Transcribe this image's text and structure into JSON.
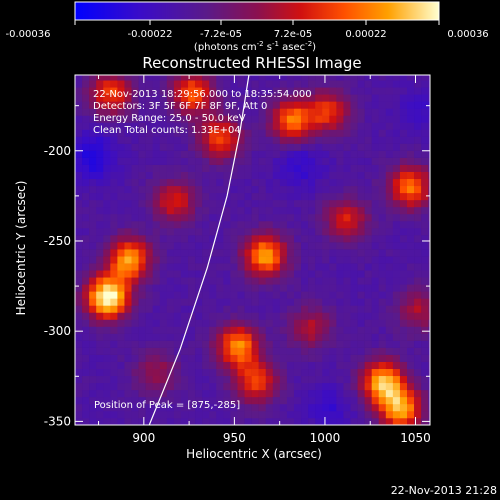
{
  "colorbar": {
    "tick_labels": [
      "-0.00036",
      "-0.00022",
      "-7.2e-05",
      "7.2e-05",
      "0.00022",
      "0.00036"
    ],
    "units_prefix": "(photons cm",
    "units_exp1": "-2",
    "units_mid": " s",
    "units_exp2": "-1",
    "units_mid2": " asec",
    "units_exp3": "-2",
    "units_suffix": ")"
  },
  "image": {
    "title": "Reconstructed RHESSI Image",
    "info_line1": "22-Nov-2013 18:29:56.000 to 18:35:54.000",
    "info_line2": "Detectors: 3F 5F 6F 7F 8F 9F, Att 0",
    "info_line3": "Energy Range: 25.0 - 50.0 keV",
    "info_line4": "Clean     Total counts: 1.33E+04",
    "peak_label": "Position of Peak = [875,-285]",
    "footer_timestamp": "22-Nov-2013 21:28"
  },
  "chart_data": {
    "type": "heatmap",
    "title": "Reconstructed RHESSI Image",
    "xlabel": "Heliocentric X (arcsec)",
    "ylabel": "Heliocentric Y (arcsec)",
    "xlim": [
      862,
      1058
    ],
    "ylim": [
      -352,
      -158
    ],
    "x_ticks": [
      900,
      950,
      1000,
      1050
    ],
    "y_ticks": [
      -200,
      -250,
      -300,
      -350
    ],
    "color_range": [
      -0.00036,
      0.00036
    ],
    "peak": [
      875,
      -285
    ],
    "limb_curve": [
      [
        903,
        -352
      ],
      [
        920,
        -310
      ],
      [
        935,
        -265
      ],
      [
        946,
        -225
      ],
      [
        953,
        -190
      ],
      [
        958,
        -158
      ]
    ],
    "sources": [
      {
        "x": 878,
        "y": -283,
        "intensity": 1.0
      },
      {
        "x": 890,
        "y": -262,
        "intensity": 0.75
      },
      {
        "x": 880,
        "y": -170,
        "intensity": 0.55
      },
      {
        "x": 925,
        "y": -170,
        "intensity": 0.6
      },
      {
        "x": 940,
        "y": -195,
        "intensity": 0.55
      },
      {
        "x": 980,
        "y": -185,
        "intensity": 0.65
      },
      {
        "x": 1000,
        "y": -180,
        "intensity": 0.5
      },
      {
        "x": 1045,
        "y": -222,
        "intensity": 0.65
      },
      {
        "x": 915,
        "y": -230,
        "intensity": 0.45
      },
      {
        "x": 965,
        "y": -260,
        "intensity": 0.75
      },
      {
        "x": 1010,
        "y": -240,
        "intensity": 0.45
      },
      {
        "x": 950,
        "y": -310,
        "intensity": 0.7
      },
      {
        "x": 960,
        "y": -330,
        "intensity": 0.55
      },
      {
        "x": 1030,
        "y": -330,
        "intensity": 0.8
      },
      {
        "x": 1040,
        "y": -345,
        "intensity": 0.75
      },
      {
        "x": 990,
        "y": -300,
        "intensity": 0.35
      },
      {
        "x": 1050,
        "y": -290,
        "intensity": 0.35
      },
      {
        "x": 905,
        "y": -325,
        "intensity": 0.3
      }
    ],
    "negative_regions": [
      {
        "x": 870,
        "y": -205,
        "intensity": 0.6
      },
      {
        "x": 985,
        "y": -210,
        "intensity": 0.4
      },
      {
        "x": 1000,
        "y": -345,
        "intensity": 0.35
      },
      {
        "x": 1050,
        "y": -180,
        "intensity": 0.3
      }
    ]
  }
}
